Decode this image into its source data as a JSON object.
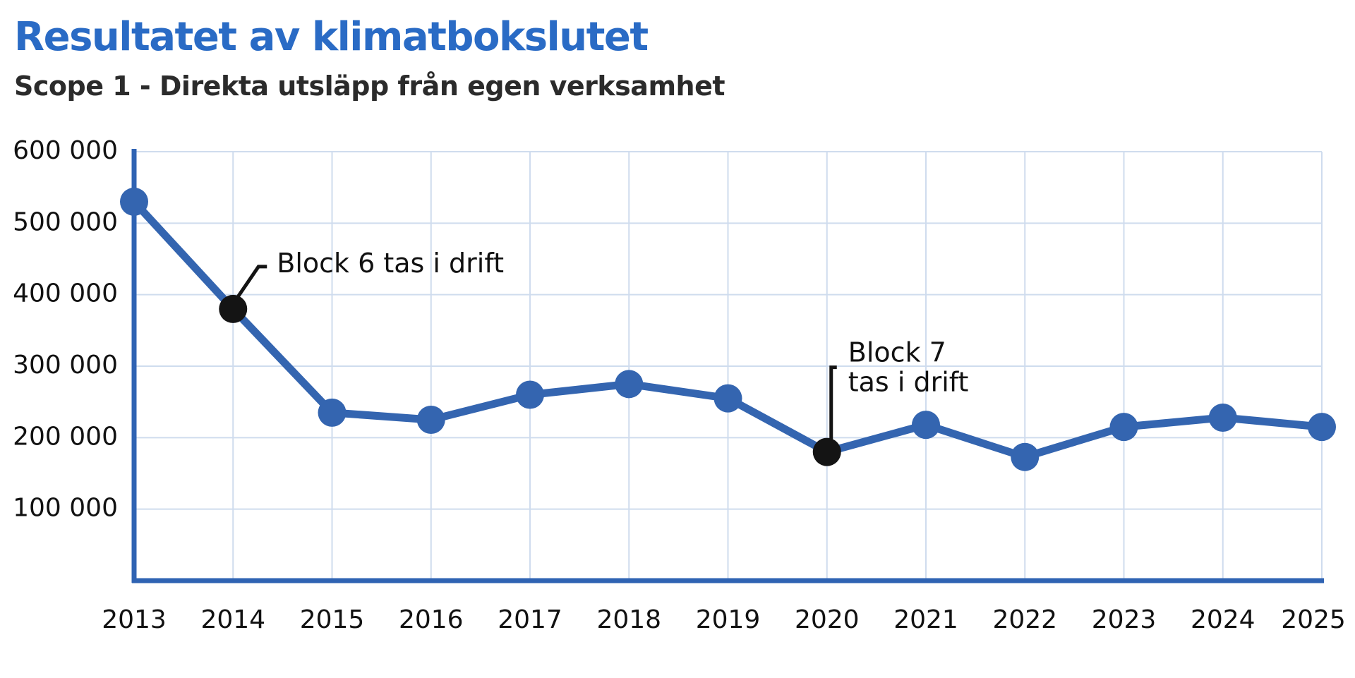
{
  "header": {
    "title": "Resultatet av klimatbokslutet",
    "subtitle": "Scope 1 - Direkta utsläpp från egen verksamhet"
  },
  "colors": {
    "title": "#2a6bc5",
    "series": "#3465b0",
    "axis": "#2f63b3",
    "grid": "#cfdcee",
    "highlight": "#141414"
  },
  "chart_data": {
    "type": "line",
    "title": "Resultatet av klimatbokslutet",
    "subtitle": "Scope 1 - Direkta utsläpp från egen verksamhet",
    "xlabel": "",
    "ylabel": "",
    "x": [
      "2013",
      "2014",
      "2015",
      "2016",
      "2017",
      "2018",
      "2019",
      "2020",
      "2021",
      "2022",
      "2023",
      "2024",
      "2025"
    ],
    "series": [
      {
        "values": [
          530000,
          380000,
          235000,
          225000,
          260000,
          275000,
          255000,
          180000,
          218000,
          173000,
          215000,
          228000,
          215000
        ]
      }
    ],
    "yticks": [
      {
        "value": 100000,
        "label": "100 000"
      },
      {
        "value": 200000,
        "label": "200 000"
      },
      {
        "value": 300000,
        "label": "300 000"
      },
      {
        "value": 400000,
        "label": "400 000"
      },
      {
        "value": 500000,
        "label": "500 000"
      },
      {
        "value": 600000,
        "label": "600 000"
      }
    ],
    "ylim": [
      0,
      600000
    ],
    "grid": true,
    "highlighted_points": [
      1,
      7
    ],
    "annotations": [
      {
        "x": "2014",
        "lines": [
          "Block 6 tas i drift"
        ]
      },
      {
        "x": "2020",
        "lines": [
          "Block 7",
          "tas i drift"
        ]
      }
    ]
  }
}
